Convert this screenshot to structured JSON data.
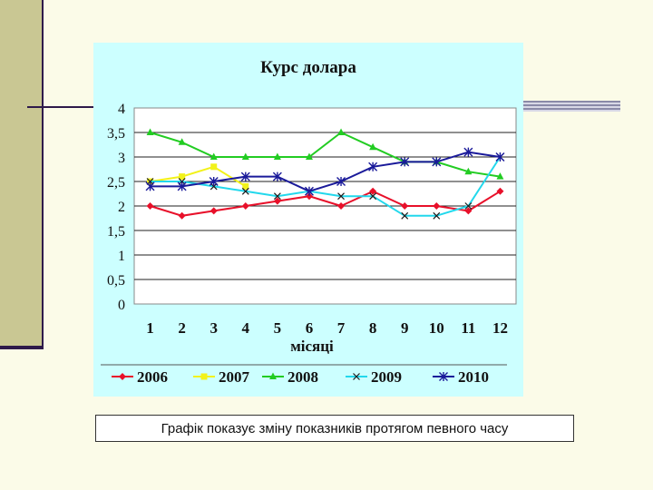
{
  "caption": "Графік показує зміну показників протягом певного часу",
  "chart_data": {
    "type": "line",
    "title": "Курс долара",
    "xlabel": "місяці",
    "ylabel": "",
    "categories": [
      "1",
      "2",
      "3",
      "4",
      "5",
      "6",
      "7",
      "8",
      "9",
      "10",
      "11",
      "12"
    ],
    "ylim": [
      0,
      4
    ],
    "yticks": [
      "0",
      "0,5",
      "1",
      "1,5",
      "2",
      "2,5",
      "3",
      "3,5",
      "4"
    ],
    "ytick_values": [
      0,
      0.5,
      1,
      1.5,
      2,
      2.5,
      3,
      3.5,
      4
    ],
    "grid": true,
    "legend_position": "bottom",
    "series": [
      {
        "name": "2006",
        "color": "#e8102a",
        "marker": "diamond",
        "line": true,
        "values": [
          2.0,
          1.8,
          1.9,
          2.0,
          2.1,
          2.2,
          2.0,
          2.3,
          2.0,
          2.0,
          1.9,
          2.3
        ]
      },
      {
        "name": "2007",
        "color": "#f2f21a",
        "marker": "square",
        "line": true,
        "values": [
          2.5,
          2.6,
          2.8,
          2.4,
          null,
          null,
          null,
          null,
          null,
          null,
          null,
          null
        ]
      },
      {
        "name": "2008",
        "color": "#22cc22",
        "marker": "triangle",
        "line": true,
        "values": [
          3.5,
          3.3,
          3.0,
          3.0,
          3.0,
          3.0,
          3.5,
          3.2,
          2.9,
          2.9,
          2.7,
          2.6
        ]
      },
      {
        "name": "2009",
        "color": "#22d8ec",
        "marker": "x",
        "line": true,
        "values": [
          2.5,
          2.5,
          2.4,
          2.3,
          2.2,
          2.3,
          2.2,
          2.2,
          1.8,
          1.8,
          2.0,
          3.0
        ]
      },
      {
        "name": "2010",
        "color": "#1a1a9a",
        "marker": "star",
        "line": true,
        "values": [
          2.4,
          2.4,
          2.5,
          2.6,
          2.6,
          2.3,
          2.5,
          2.8,
          2.9,
          2.9,
          3.1,
          3.0
        ]
      }
    ]
  }
}
